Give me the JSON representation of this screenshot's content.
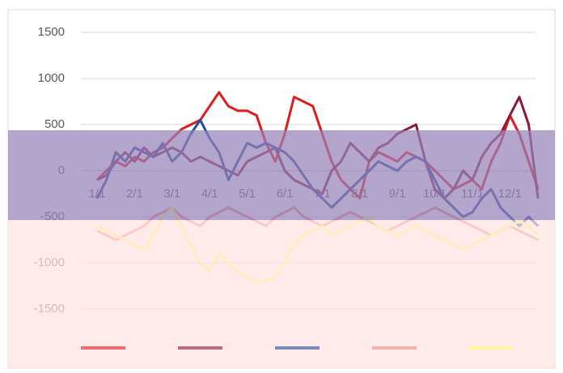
{
  "chart_data": {
    "type": "line",
    "categories": [
      "1/1",
      null,
      null,
      null,
      "2/1",
      null,
      null,
      null,
      "3/1",
      null,
      null,
      null,
      "4/1",
      null,
      null,
      null,
      "5/1",
      null,
      null,
      null,
      "6/1",
      null,
      null,
      null,
      "7/1",
      null,
      null,
      null,
      "8/1",
      null,
      null,
      null,
      "9/1",
      null,
      null,
      null,
      "10/1",
      null,
      null,
      null,
      "11/1",
      null,
      null,
      null,
      "12/1",
      null,
      null,
      null
    ],
    "series": [
      {
        "color": "#e31a1c",
        "values": [
          -100,
          0,
          100,
          50,
          150,
          100,
          200,
          250,
          350,
          450,
          500,
          550,
          700,
          850,
          700,
          650,
          650,
          600,
          300,
          100,
          400,
          800,
          750,
          700,
          400,
          100,
          -100,
          -200,
          -300,
          100,
          200,
          150,
          100,
          200,
          150,
          100,
          0,
          -100,
          -200,
          -150,
          -100,
          -200,
          100,
          300,
          600,
          400,
          100,
          -200
        ]
      },
      {
        "color": "#8b1a3a",
        "values": [
          -100,
          -50,
          100,
          200,
          100,
          250,
          150,
          200,
          250,
          200,
          100,
          150,
          100,
          50,
          0,
          -50,
          100,
          150,
          200,
          250,
          0,
          -100,
          -150,
          -200,
          -250,
          0,
          100,
          300,
          200,
          100,
          250,
          300,
          400,
          450,
          500,
          100,
          -200,
          -300,
          -200,
          0,
          -100,
          150,
          300,
          400,
          600,
          800,
          500,
          -300
        ]
      },
      {
        "color": "#1f4e9a",
        "values": [
          -300,
          -100,
          200,
          100,
          250,
          200,
          150,
          300,
          100,
          200,
          400,
          550,
          350,
          200,
          -100,
          100,
          300,
          250,
          300,
          250,
          200,
          100,
          -50,
          -200,
          -300,
          -400,
          -300,
          -200,
          -100,
          0,
          100,
          50,
          0,
          100,
          150,
          100,
          -100,
          -300,
          -400,
          -500,
          -450,
          -300,
          -200,
          -400,
          -500,
          -600,
          -500,
          -600
        ]
      },
      {
        "color": "#f08c7c",
        "values": [
          -650,
          -700,
          -750,
          -700,
          -650,
          -600,
          -500,
          -450,
          -400,
          -500,
          -550,
          -600,
          -500,
          -450,
          -400,
          -450,
          -500,
          -550,
          -600,
          -500,
          -450,
          -400,
          -500,
          -550,
          -600,
          -550,
          -500,
          -450,
          -500,
          -550,
          -600,
          -650,
          -600,
          -550,
          -500,
          -450,
          -400,
          -450,
          -500,
          -550,
          -600,
          -650,
          -700,
          -650,
          -600,
          -650,
          -700,
          -750
        ]
      },
      {
        "color": "#ffff66",
        "values": [
          -600,
          -650,
          -700,
          -750,
          -800,
          -850,
          -700,
          -500,
          -400,
          -600,
          -800,
          -1000,
          -1100,
          -900,
          -1000,
          -1100,
          -1150,
          -1200,
          -1200,
          -1150,
          -1000,
          -800,
          -700,
          -650,
          -600,
          -700,
          -650,
          -600,
          -550,
          -500,
          -600,
          -650,
          -700,
          -650,
          -600,
          -650,
          -700,
          -750,
          -800,
          -850,
          -800,
          -750,
          -700,
          -650,
          -600,
          -550,
          -600,
          -700
        ]
      }
    ],
    "ylim": [
      -1500,
      1500
    ],
    "yticks": [
      -1500,
      -1000,
      -500,
      0,
      500,
      1000,
      1500
    ],
    "grid": true
  }
}
